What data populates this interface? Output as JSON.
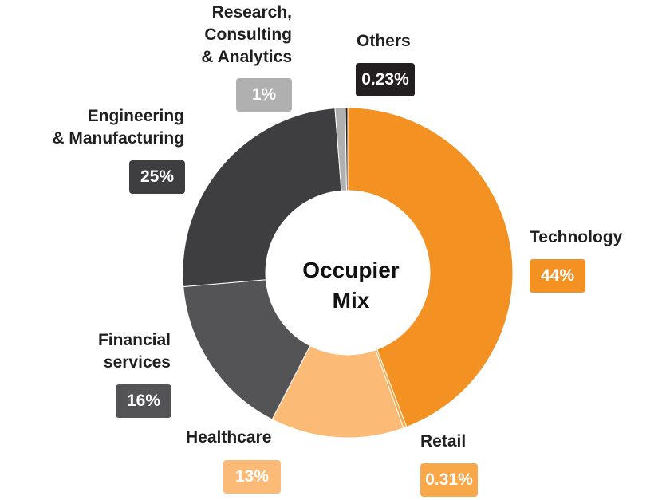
{
  "chart_data": {
    "type": "pie",
    "variant": "donut",
    "center_label": "Occupier\nMix",
    "slices": [
      {
        "label": "Technology",
        "value": 44,
        "display": "44%",
        "color": "#F39222"
      },
      {
        "label": "Retail",
        "value": 0.31,
        "display": "0.31%",
        "color": "#F8A849"
      },
      {
        "label": "Healthcare",
        "value": 13,
        "display": "13%",
        "color": "#FCBA77"
      },
      {
        "label": "Financial\nservices",
        "value": 16,
        "display": "16%",
        "color": "#545456"
      },
      {
        "label": "Engineering\n& Manufacturing",
        "value": 25,
        "display": "25%",
        "color": "#3E3E40"
      },
      {
        "label": "Research,\nConsulting\n& Analytics",
        "value": 1,
        "display": "1%",
        "color": "#B0B0B0"
      },
      {
        "label": "Others",
        "value": 0.23,
        "display": "0.23%",
        "color": "#231F20"
      }
    ]
  }
}
